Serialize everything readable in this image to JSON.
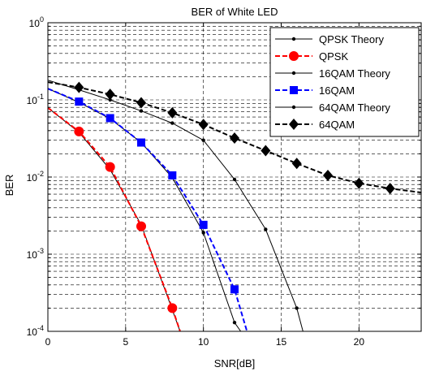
{
  "chart_data": {
    "type": "line",
    "title": "BER of White LED",
    "xlabel": "SNR[dB]",
    "ylabel": "BER",
    "xlim": [
      0,
      24
    ],
    "ylim": [
      0.0001,
      1
    ],
    "yscale": "log",
    "grid": true,
    "legend_position": "top-right",
    "x_ticks": [
      0,
      5,
      10,
      15,
      20
    ],
    "y_ticks": [
      {
        "value": 0.0001,
        "exp": "-4"
      },
      {
        "value": 0.001,
        "exp": "-3"
      },
      {
        "value": 0.01,
        "exp": "-2"
      },
      {
        "value": 0.1,
        "exp": "-1"
      },
      {
        "value": 1,
        "exp": "0"
      }
    ],
    "series": [
      {
        "name": "QPSK Theory",
        "color": "#000000",
        "dash": "solid",
        "marker": "dot",
        "x": [
          0,
          2,
          4,
          6,
          8,
          8.5
        ],
        "y": [
          0.079,
          0.038,
          0.0125,
          0.0024,
          0.00019,
          0.0001
        ]
      },
      {
        "name": "QPSK",
        "color": "#ff0000",
        "dash": "dashed",
        "marker": "circle",
        "x": [
          0,
          2,
          4,
          6,
          8,
          8.5
        ],
        "y": [
          0.079,
          0.039,
          0.0135,
          0.0023,
          0.0002,
          0.0001
        ]
      },
      {
        "name": "16QAM Theory",
        "color": "#000000",
        "dash": "solid",
        "marker": "dot",
        "x": [
          0,
          2,
          4,
          6,
          8,
          10,
          12,
          12.4
        ],
        "y": [
          0.14,
          0.093,
          0.057,
          0.028,
          0.0098,
          0.0019,
          0.00013,
          0.0001
        ]
      },
      {
        "name": "16QAM",
        "color": "#0000ff",
        "dash": "dashed",
        "marker": "square",
        "x": [
          0,
          2,
          4,
          6,
          8,
          10,
          12,
          12.8
        ],
        "y": [
          0.14,
          0.095,
          0.058,
          0.028,
          0.0105,
          0.0024,
          0.00035,
          0.0001
        ]
      },
      {
        "name": "64QAM Theory",
        "color": "#000000",
        "dash": "solid",
        "marker": "dot",
        "x": [
          0,
          2,
          4,
          6,
          8,
          10,
          12,
          14,
          16,
          16.4
        ],
        "y": [
          0.18,
          0.135,
          0.1,
          0.072,
          0.05,
          0.03,
          0.0093,
          0.0021,
          0.0002,
          0.0001
        ]
      },
      {
        "name": "64QAM",
        "color": "#000000",
        "dash": "dashed",
        "marker": "diamond",
        "x": [
          0,
          2,
          4,
          6,
          8,
          10,
          12,
          14,
          16,
          18,
          20,
          22,
          24
        ],
        "y": [
          0.17,
          0.145,
          0.118,
          0.092,
          0.068,
          0.048,
          0.032,
          0.022,
          0.015,
          0.0105,
          0.0083,
          0.0071,
          0.0063
        ]
      }
    ]
  }
}
